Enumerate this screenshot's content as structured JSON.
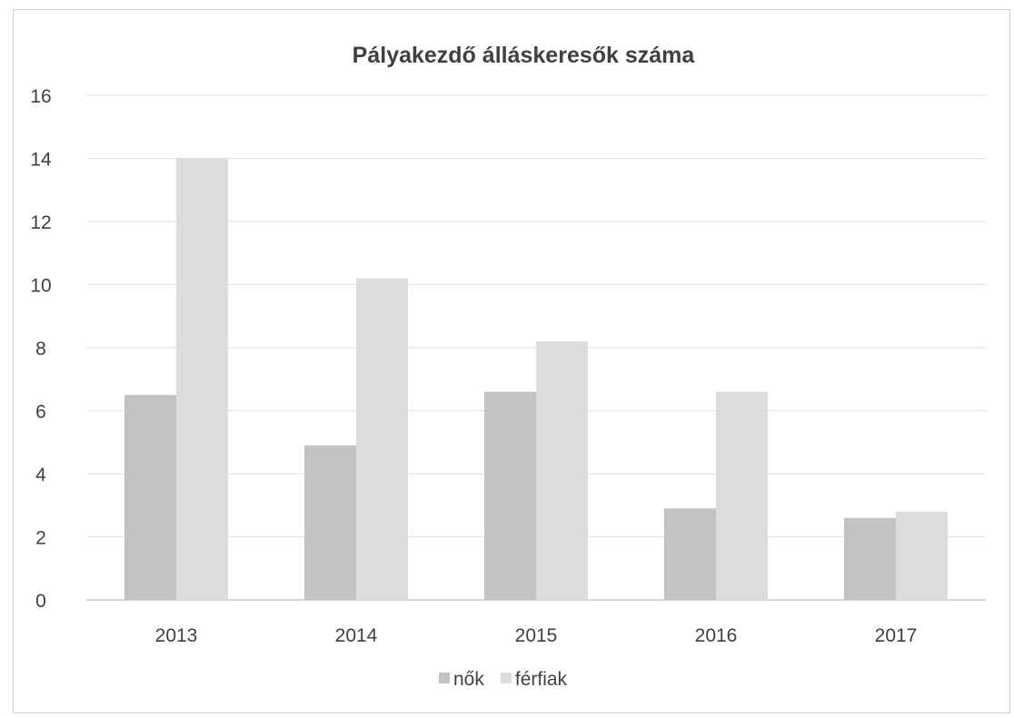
{
  "chart_data": {
    "type": "bar",
    "title": "Pályakezdő álláskeresők száma",
    "categories": [
      "2013",
      "2014",
      "2015",
      "2016",
      "2017"
    ],
    "series": [
      {
        "name": "nők",
        "values": [
          6.5,
          4.9,
          6.6,
          2.9,
          2.6
        ],
        "color": "#c3c3c3"
      },
      {
        "name": "férfiak",
        "values": [
          14.0,
          10.2,
          8.2,
          6.6,
          2.8
        ],
        "color": "#dcdcdc"
      }
    ],
    "ylim": [
      0,
      16
    ],
    "yticks": [
      "0",
      "2",
      "4",
      "6",
      "8",
      "10",
      "12",
      "14",
      "16"
    ],
    "grid": true,
    "legend_position": "bottom"
  }
}
